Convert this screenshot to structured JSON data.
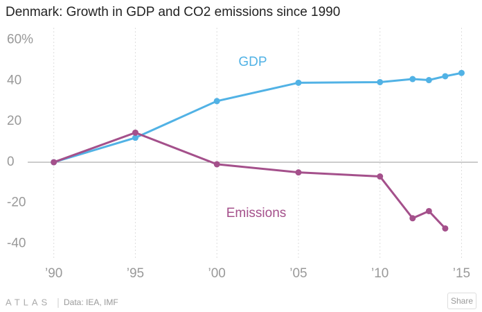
{
  "chart_data": {
    "type": "line",
    "title": "Denmark: Growth in GDP and CO2 emissions since 1990",
    "x": [
      1990,
      1995,
      2000,
      2005,
      2010,
      2012,
      2013,
      2014,
      2015
    ],
    "series": [
      {
        "name": "GDP",
        "color": "#51b2e5",
        "values": [
          0,
          12,
          30,
          39,
          39.3,
          40.8,
          40.3,
          42.2,
          43.8
        ]
      },
      {
        "name": "Emissions",
        "color": "#a4508b",
        "values": [
          0,
          14.5,
          -1,
          -5,
          -7,
          -27.5,
          -24,
          -32.5,
          null
        ]
      }
    ],
    "xlim": [
      1988.4,
      2016
    ],
    "xticks": [
      {
        "value": 1990,
        "label": "’90"
      },
      {
        "value": 1995,
        "label": "’95"
      },
      {
        "value": 2000,
        "label": "’00"
      },
      {
        "value": 2005,
        "label": "’05"
      },
      {
        "value": 2010,
        "label": "’10"
      },
      {
        "value": 2015,
        "label": "’15"
      }
    ],
    "ylim": [
      -48,
      66
    ],
    "yticks": [
      {
        "value": 60,
        "label": "60%"
      },
      40,
      20,
      0,
      -20,
      -40
    ],
    "grid": "x"
  },
  "footer": {
    "logo": "ATLAS",
    "source": "Data: IEA, IMF",
    "button": "Share"
  }
}
